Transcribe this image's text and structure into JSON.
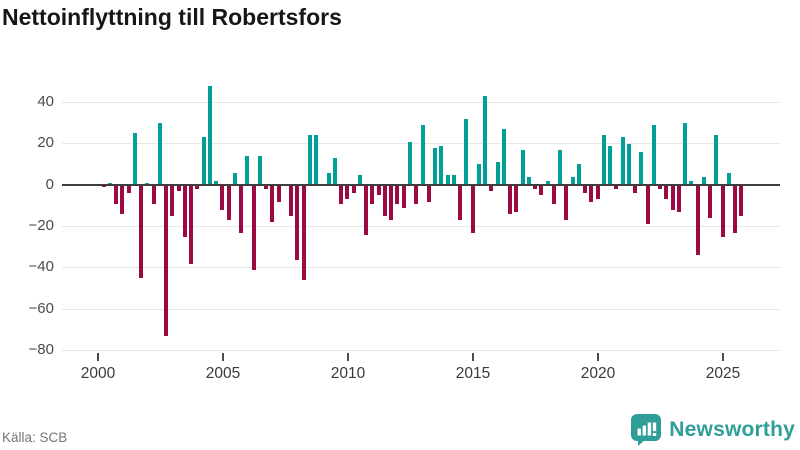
{
  "title": "Nettoinflyttning till Robertsfors",
  "source": "Källa: SCB",
  "branding": {
    "logo_text": "Newsworthy"
  },
  "colors": {
    "positive_bar": "#00A099",
    "negative_bar": "#9B0A43",
    "zero_line": "#3E3E3E",
    "gridline": "#E7E7E7",
    "title_text": "#161616",
    "axis_text": "#4B4B4B",
    "source_text": "#767676",
    "brand_teal": "#2F9E99",
    "background": "#FFFFFF"
  },
  "chart_data": {
    "type": "bar",
    "title": "Nettoinflyttning till Robertsfors",
    "xlabel": "",
    "ylabel": "",
    "frequency": "quarterly",
    "x_start": "2000Q1",
    "x_end": "2025Q3",
    "grid": true,
    "legend": false,
    "ylim": [
      -80,
      48
    ],
    "y_tick_values": [
      40,
      20,
      0,
      -20,
      -40,
      -60,
      -80
    ],
    "y_tick_labels": [
      "40",
      "20",
      "0",
      "−20",
      "−40",
      "−60",
      "−80"
    ],
    "x_tick_labels": [
      "2000",
      "2005",
      "2010",
      "2015",
      "2020",
      "2025"
    ],
    "values": [
      -1,
      1,
      -9,
      -14,
      -4,
      25,
      -45,
      1,
      -9,
      30,
      -73,
      -15,
      -3,
      -25,
      -38,
      -2,
      23,
      48,
      2,
      -12,
      -17,
      6,
      -23,
      14,
      -41,
      14,
      -2,
      -18,
      -8,
      0,
      -15,
      -36,
      -46,
      24,
      24,
      0,
      6,
      13,
      -9,
      -7,
      -4,
      5,
      -24,
      -9,
      -5,
      -15,
      -17,
      -9,
      -11,
      21,
      -9,
      29,
      -8,
      18,
      19,
      5,
      5,
      -17,
      32,
      -23,
      10,
      43,
      -3,
      11,
      27,
      -14,
      -13,
      17,
      4,
      -2,
      -5,
      2,
      -9,
      17,
      -17,
      4,
      10,
      -4,
      -8,
      -7,
      24,
      19,
      -2,
      23,
      20,
      -4,
      16,
      -19,
      29,
      -2,
      -7,
      -12,
      -13,
      30,
      2,
      -34,
      4,
      -16,
      24,
      -25,
      6,
      -23,
      -15
    ]
  }
}
